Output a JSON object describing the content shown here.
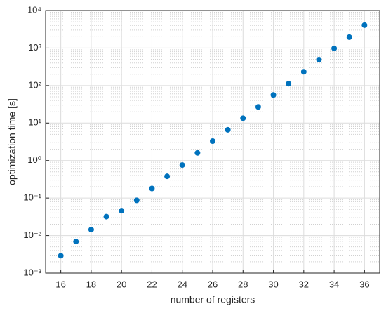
{
  "chart_data": {
    "type": "scatter",
    "xlabel": "number of registers",
    "ylabel": "optimization time [s]",
    "x": [
      16,
      17,
      18,
      19,
      20,
      21,
      22,
      23,
      24,
      25,
      26,
      27,
      28,
      29,
      30,
      31,
      32,
      33,
      34,
      35,
      36
    ],
    "series": [
      {
        "color": "#0072BD",
        "values": [
          0.0029,
          0.0069,
          0.0144,
          0.032,
          0.046,
          0.087,
          0.18,
          0.38,
          0.76,
          1.6,
          3.3,
          6.6,
          13.5,
          27,
          56,
          112,
          233,
          490,
          980,
          1950,
          4070
        ]
      }
    ],
    "xlim": [
      15,
      37
    ],
    "xticks": [
      16,
      18,
      20,
      22,
      24,
      26,
      28,
      30,
      32,
      34,
      36
    ],
    "ylim": [
      0.001,
      10000
    ],
    "yticks": [
      {
        "value": 0.001,
        "label": "10⁻³"
      },
      {
        "value": 0.01,
        "label": "10⁻²"
      },
      {
        "value": 0.1,
        "label": "10⁻¹"
      },
      {
        "value": 1,
        "label": "10⁰"
      },
      {
        "value": 10,
        "label": "10¹"
      },
      {
        "value": 100,
        "label": "10²"
      },
      {
        "value": 1000,
        "label": "10³"
      },
      {
        "value": 10000,
        "label": "10⁴"
      }
    ],
    "yscale": "log",
    "grid": true
  }
}
